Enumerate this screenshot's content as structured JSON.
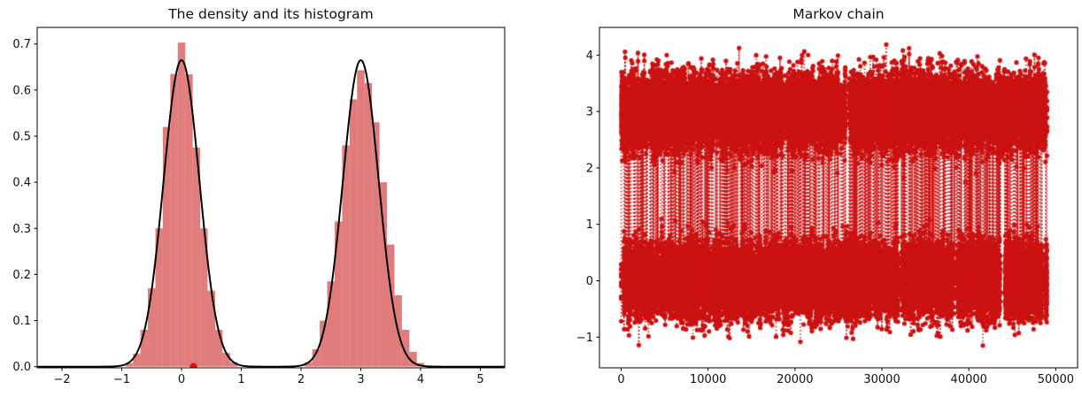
{
  "figure": {
    "background": "#ffffff",
    "text_color": "#111111",
    "spine_color": "#000000"
  },
  "chart_data": [
    {
      "type": "histogram+line",
      "title": "The density and its histogram",
      "xlabel": "",
      "ylabel": "",
      "xlim": [
        -2.415,
        5.41
      ],
      "ylim": [
        -0.0025,
        0.7365
      ],
      "grid": false,
      "legend": "none",
      "xticks": [
        {
          "v": -2,
          "label": "−2"
        },
        {
          "v": -1,
          "label": "−1"
        },
        {
          "v": 0,
          "label": "0"
        },
        {
          "v": 1,
          "label": "1"
        },
        {
          "v": 2,
          "label": "2"
        },
        {
          "v": 3,
          "label": "3"
        },
        {
          "v": 4,
          "label": "4"
        },
        {
          "v": 5,
          "label": "5"
        }
      ],
      "yticks": [
        {
          "v": 0.0,
          "label": "0.0"
        },
        {
          "v": 0.1,
          "label": "0.1"
        },
        {
          "v": 0.2,
          "label": "0.2"
        },
        {
          "v": 0.3,
          "label": "0.3"
        },
        {
          "v": 0.4,
          "label": "0.4"
        },
        {
          "v": 0.5,
          "label": "0.5"
        },
        {
          "v": 0.6,
          "label": "0.6"
        },
        {
          "v": 0.7,
          "label": "0.7"
        }
      ],
      "bin_width": 0.125,
      "bins": [
        [
          -0.875,
          0.008
        ],
        [
          -0.75,
          0.028
        ],
        [
          -0.625,
          0.08
        ],
        [
          -0.5,
          0.17
        ],
        [
          -0.375,
          0.3
        ],
        [
          -0.25,
          0.52
        ],
        [
          -0.125,
          0.635
        ],
        [
          0.0,
          0.703
        ],
        [
          0.125,
          0.634
        ],
        [
          0.25,
          0.475
        ],
        [
          0.375,
          0.3
        ],
        [
          0.5,
          0.165
        ],
        [
          0.625,
          0.08
        ],
        [
          0.75,
          0.03
        ],
        [
          0.875,
          0.01
        ],
        [
          2.125,
          0.01
        ],
        [
          2.25,
          0.038
        ],
        [
          2.375,
          0.1
        ],
        [
          2.5,
          0.185
        ],
        [
          2.625,
          0.315
        ],
        [
          2.75,
          0.48
        ],
        [
          2.875,
          0.58
        ],
        [
          3.0,
          0.643
        ],
        [
          3.125,
          0.615
        ],
        [
          3.25,
          0.53
        ],
        [
          3.375,
          0.4
        ],
        [
          3.5,
          0.265
        ],
        [
          3.625,
          0.155
        ],
        [
          3.75,
          0.08
        ],
        [
          3.875,
          0.032
        ],
        [
          4.0,
          0.008
        ]
      ],
      "density_curve": {
        "model": "gaussian-mixture",
        "weights": [
          0.5,
          0.5
        ],
        "means": [
          0,
          3
        ],
        "sds": [
          0.3,
          0.3
        ],
        "peak_value": 0.665
      },
      "marker_point": {
        "x": 0.2,
        "y": 0.0
      },
      "colors": {
        "histogram": "#e17c7c",
        "density_line": "#000000",
        "marker": "#e31010"
      }
    },
    {
      "type": "trace",
      "title": "Markov chain",
      "xlabel": "",
      "ylabel": "",
      "xlim": [
        -2500,
        52500
      ],
      "ylim": [
        -1.55,
        4.48
      ],
      "grid": false,
      "legend": "none",
      "xticks": [
        {
          "v": 0,
          "label": "0"
        },
        {
          "v": 10000,
          "label": "10000"
        },
        {
          "v": 20000,
          "label": "20000"
        },
        {
          "v": 30000,
          "label": "30000"
        },
        {
          "v": 40000,
          "label": "40000"
        },
        {
          "v": 50000,
          "label": "50000"
        }
      ],
      "yticks": [
        {
          "v": -1,
          "label": "−1"
        },
        {
          "v": 0,
          "label": "0"
        },
        {
          "v": 1,
          "label": "1"
        },
        {
          "v": 2,
          "label": "2"
        },
        {
          "v": 3,
          "label": "3"
        },
        {
          "v": 4,
          "label": "4"
        }
      ],
      "n_steps": 49000,
      "modes": [
        0,
        3
      ],
      "mode_sd": 0.3,
      "switch_prob": 0.016,
      "observed_y_min": -1.25,
      "observed_y_max": 4.25,
      "seed": 1337,
      "marker": "point",
      "line_style": "dotted",
      "colors": {
        "points": "#cc1111"
      }
    }
  ]
}
